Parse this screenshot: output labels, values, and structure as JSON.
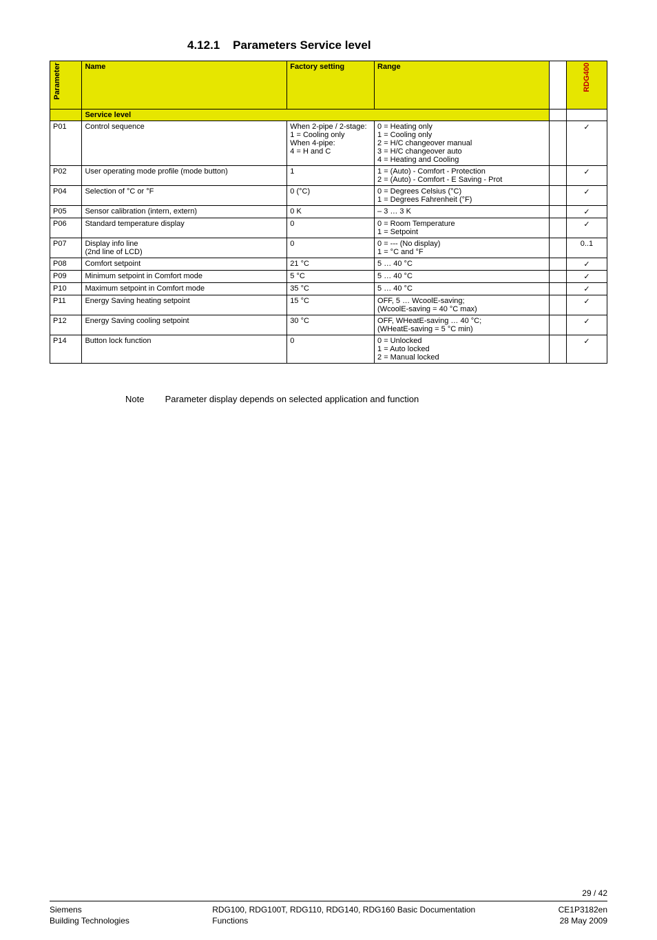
{
  "section": {
    "number": "4.12.1",
    "title": "Parameters Service level"
  },
  "headers": {
    "parameter": "Parameter",
    "name": "Name",
    "factory": "Factory setting",
    "range": "Range",
    "rdg400": "RDG400",
    "service_level": "Service level"
  },
  "rows": [
    {
      "p": "P01",
      "name": "Control sequence",
      "factory": "When 2-pipe / 2-stage:\n1 = Cooling only\nWhen 4-pipe:\n4 = H and C",
      "range": "0 = Heating only\n1 = Cooling only\n2 = H/C changeover manual\n3 = H/C changeover auto\n4 = Heating and Cooling",
      "rdg": "✓"
    },
    {
      "p": "P02",
      "name": "User operating mode profile (mode button)",
      "factory": "1",
      "range": "1 = (Auto) - Comfort - Protection\n2 = (Auto) - Comfort - E Saving - Prot",
      "rdg": "✓"
    },
    {
      "p": "P04",
      "name": "Selection of °C or °F",
      "factory": "0 (°C)",
      "range": "0 = Degrees Celsius (°C)\n1 = Degrees Fahrenheit (°F)",
      "rdg": "✓"
    },
    {
      "p": "P05",
      "name": "Sensor calibration (intern, extern)",
      "factory": "0 K",
      "range": "– 3 … 3 K",
      "rdg": "✓"
    },
    {
      "p": "P06",
      "name": "Standard temperature display",
      "factory": "0",
      "range": "0 = Room Temperature\n1 = Setpoint",
      "rdg": "✓"
    },
    {
      "p": "P07",
      "name": "Display info line\n(2nd line of LCD)",
      "factory": "0",
      "range": "0 = --- (No display)\n1 = °C and °F",
      "rdg": "0..1"
    },
    {
      "p": "P08",
      "name": "Comfort setpoint",
      "factory": "21 °C",
      "range": "5 … 40 °C",
      "rdg": "✓"
    },
    {
      "p": "P09",
      "name": "Minimum setpoint in Comfort  mode",
      "factory": "5 °C",
      "range": "5 … 40 °C",
      "rdg": "✓"
    },
    {
      "p": "P10",
      "name": "Maximum setpoint in Comfort mode",
      "factory": "35 °C",
      "range": "5 … 40 °C",
      "rdg": "✓"
    },
    {
      "p": "P11",
      "name": "Energy Saving heating setpoint",
      "factory": "15 °C",
      "range": "OFF, 5 … WcoolE-saving;\n(WcoolE-saving = 40 °C max)",
      "rdg": "✓"
    },
    {
      "p": "P12",
      "name": "Energy Saving cooling setpoint",
      "factory": "30 °C",
      "range": "OFF, WHeatE-saving … 40 °C;\n(WHeatE-saving = 5 °C min)",
      "rdg": "✓"
    },
    {
      "p": "P14",
      "name": "Button lock function",
      "factory": "0",
      "range": "0 = Unlocked\n1 = Auto locked\n2 = Manual locked",
      "rdg": "✓"
    }
  ],
  "note": {
    "label": "Note",
    "text": "Parameter display depends on selected application and function"
  },
  "page_number": "29 / 42",
  "footer": {
    "left1": "Siemens",
    "left2": "Building Technologies",
    "mid1": "RDG100, RDG100T, RDG110, RDG140, RDG160 Basic Documentation",
    "mid2": "Functions",
    "right1": "CE1P3182en",
    "right2": "28 May 2009"
  }
}
